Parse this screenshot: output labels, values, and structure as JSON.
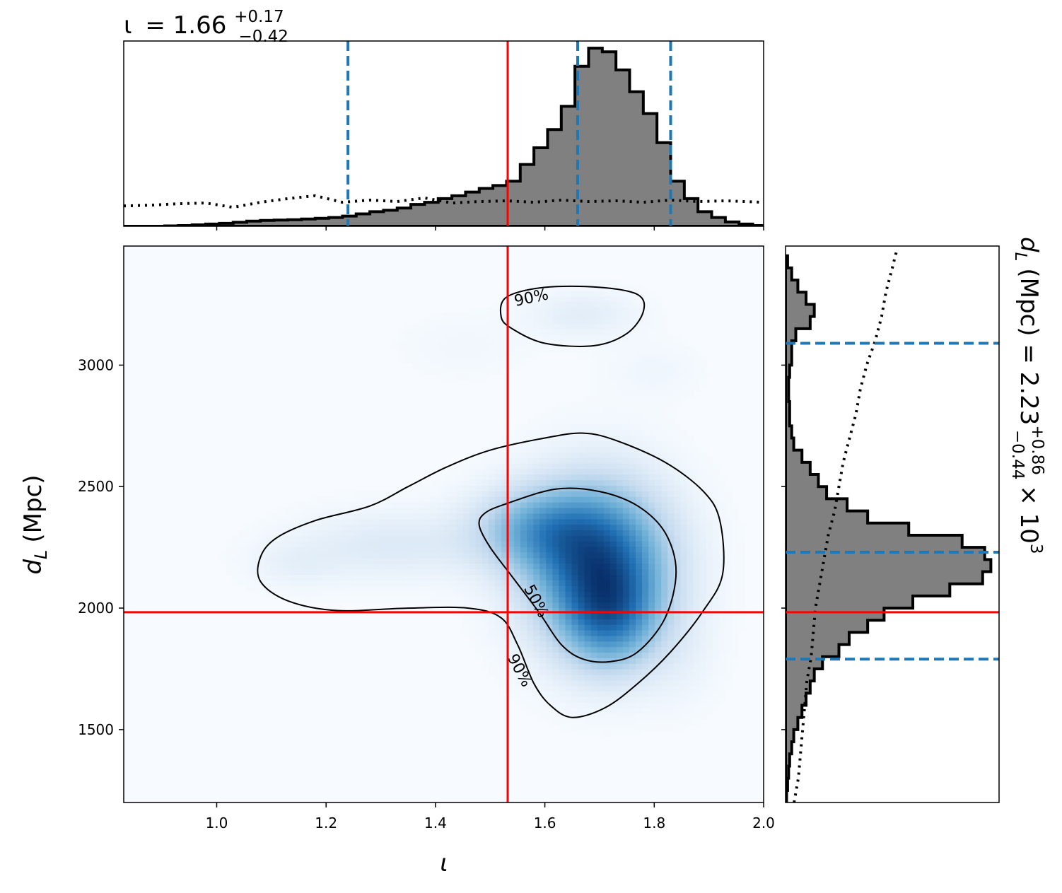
{
  "chart_data": {
    "type": "corner",
    "colors": {
      "hist_fill": "#808080",
      "hist_edge": "#000000",
      "quantile": "#1f77b4",
      "truth": "#ff0000",
      "contour": "#000000",
      "density_low": "#f7fbff",
      "density_high": "#08306b"
    },
    "top_panel": {
      "title": {
        "param": "ι",
        "eq": "= 1.66",
        "sup": "+0.17",
        "sub": "−0.42"
      },
      "xlim": [
        0.83,
        2.0
      ],
      "hist": {
        "edges": [
          0.83,
          0.855,
          0.88,
          0.905,
          0.93,
          0.955,
          0.98,
          1.005,
          1.03,
          1.055,
          1.08,
          1.105,
          1.13,
          1.155,
          1.18,
          1.205,
          1.23,
          1.255,
          1.28,
          1.305,
          1.33,
          1.355,
          1.38,
          1.405,
          1.43,
          1.455,
          1.48,
          1.505,
          1.53,
          1.555,
          1.58,
          1.605,
          1.63,
          1.655,
          1.68,
          1.705,
          1.73,
          1.755,
          1.78,
          1.805,
          1.83,
          1.855,
          1.88,
          1.905,
          1.93,
          1.955,
          1.98,
          2.0
        ],
        "values": [
          0.0,
          0.0,
          0.0,
          0.005,
          0.01,
          0.02,
          0.03,
          0.04,
          0.055,
          0.07,
          0.08,
          0.085,
          0.09,
          0.1,
          0.11,
          0.12,
          0.14,
          0.17,
          0.2,
          0.22,
          0.25,
          0.3,
          0.33,
          0.38,
          0.42,
          0.47,
          0.52,
          0.56,
          0.62,
          0.85,
          1.08,
          1.33,
          1.65,
          2.2,
          2.45,
          2.4,
          2.15,
          1.85,
          1.55,
          1.15,
          0.62,
          0.38,
          0.2,
          0.12,
          0.06,
          0.03,
          0.01
        ]
      },
      "prior_line": {
        "x": [
          0.83,
          0.88,
          0.93,
          0.98,
          1.03,
          1.08,
          1.13,
          1.18,
          1.23,
          1.28,
          1.33,
          1.38,
          1.43,
          1.48,
          1.53,
          1.58,
          1.63,
          1.68,
          1.73,
          1.78,
          1.83,
          1.88,
          1.93,
          2.0
        ],
        "y": [
          0.28,
          0.29,
          0.31,
          0.32,
          0.26,
          0.33,
          0.38,
          0.42,
          0.33,
          0.36,
          0.34,
          0.39,
          0.32,
          0.34,
          0.35,
          0.33,
          0.36,
          0.34,
          0.35,
          0.33,
          0.36,
          0.34,
          0.35,
          0.33
        ]
      },
      "quantiles": [
        1.24,
        1.66,
        1.83
      ],
      "truth": 1.532
    },
    "main_panel": {
      "xlabel": "ι",
      "ylabel": {
        "var": "d",
        "sub": "L",
        "rest": "(Mpc)"
      },
      "xlim": [
        0.83,
        2.0
      ],
      "ylim": [
        1200,
        3490
      ],
      "xticks": [
        1.0,
        1.2,
        1.4,
        1.6,
        1.8,
        2.0
      ],
      "xtick_labels": [
        "1.0",
        "1.2",
        "1.4",
        "1.6",
        "1.8",
        "2.0"
      ],
      "yticks": [
        1500,
        2000,
        2500,
        3000
      ],
      "ytick_labels": [
        "1500",
        "2000",
        "2500",
        "3000"
      ],
      "truth": {
        "x": 1.532,
        "y": 1983
      },
      "density_blobs": [
        {
          "x": 1.7,
          "y": 2180,
          "sx": 0.09,
          "sy": 230,
          "w": 1.0
        },
        {
          "x": 1.72,
          "y": 1950,
          "sx": 0.06,
          "sy": 150,
          "w": 0.45
        },
        {
          "x": 1.58,
          "y": 2330,
          "sx": 0.08,
          "sy": 120,
          "w": 0.45
        },
        {
          "x": 1.32,
          "y": 2260,
          "sx": 0.12,
          "sy": 100,
          "w": 0.16
        },
        {
          "x": 1.14,
          "y": 2180,
          "sx": 0.06,
          "sy": 70,
          "w": 0.08
        },
        {
          "x": 1.67,
          "y": 3210,
          "sx": 0.07,
          "sy": 70,
          "w": 0.13
        },
        {
          "x": 1.8,
          "y": 2980,
          "sx": 0.06,
          "sy": 80,
          "w": 0.05
        },
        {
          "x": 1.45,
          "y": 3080,
          "sx": 0.08,
          "sy": 90,
          "w": 0.04
        },
        {
          "x": 1.85,
          "y": 1800,
          "sx": 0.05,
          "sy": 150,
          "w": 0.06
        }
      ],
      "contours": [
        {
          "level_label": "90%",
          "points": [
            [
              1.08,
              2210
            ],
            [
              1.11,
              2290
            ],
            [
              1.18,
              2360
            ],
            [
              1.28,
              2420
            ],
            [
              1.35,
              2500
            ],
            [
              1.42,
              2580
            ],
            [
              1.5,
              2650
            ],
            [
              1.6,
              2700
            ],
            [
              1.67,
              2720
            ],
            [
              1.73,
              2690
            ],
            [
              1.82,
              2600
            ],
            [
              1.89,
              2480
            ],
            [
              1.92,
              2360
            ],
            [
              1.925,
              2140
            ],
            [
              1.89,
              1990
            ],
            [
              1.83,
              1820
            ],
            [
              1.77,
              1690
            ],
            [
              1.71,
              1590
            ],
            [
              1.65,
              1550
            ],
            [
              1.61,
              1600
            ],
            [
              1.58,
              1690
            ],
            [
              1.55,
              1850
            ],
            [
              1.52,
              1960
            ],
            [
              1.46,
              2000
            ],
            [
              1.35,
              2000
            ],
            [
              1.22,
              1990
            ],
            [
              1.13,
              2030
            ],
            [
              1.08,
              2110
            ]
          ]
        },
        {
          "level_label": "50%",
          "points": [
            [
              1.49,
              2390
            ],
            [
              1.53,
              2430
            ],
            [
              1.62,
              2490
            ],
            [
              1.7,
              2480
            ],
            [
              1.77,
              2420
            ],
            [
              1.82,
              2310
            ],
            [
              1.84,
              2150
            ],
            [
              1.82,
              1960
            ],
            [
              1.77,
              1820
            ],
            [
              1.72,
              1780
            ],
            [
              1.67,
              1790
            ],
            [
              1.63,
              1850
            ],
            [
              1.59,
              1980
            ],
            [
              1.54,
              2130
            ],
            [
              1.5,
              2250
            ],
            [
              1.48,
              2340
            ]
          ]
        },
        {
          "level_label": "90%",
          "points": [
            [
              1.53,
              3280
            ],
            [
              1.6,
              3320
            ],
            [
              1.7,
              3320
            ],
            [
              1.77,
              3290
            ],
            [
              1.78,
              3220
            ],
            [
              1.75,
              3130
            ],
            [
              1.69,
              3080
            ],
            [
              1.6,
              3090
            ],
            [
              1.54,
              3150
            ],
            [
              1.52,
              3200
            ]
          ]
        }
      ],
      "contour_labels": [
        {
          "text": "90%",
          "x": 1.575,
          "y": 3280,
          "rotation": -12
        },
        {
          "text": "50%",
          "x": 1.585,
          "y": 2030,
          "rotation": 62
        },
        {
          "text": "90%",
          "x": 1.555,
          "y": 1745,
          "rotation": 62
        }
      ]
    },
    "right_panel": {
      "title": {
        "var": "d",
        "sub": "L",
        "eq": "(Mpc) = 2.23",
        "sup": "+0.86",
        "subsc": "−0.44",
        "tail": "× 10",
        "exp": "3"
      },
      "ylim": [
        1200,
        3490
      ],
      "hist": {
        "edges": [
          1200,
          1250,
          1300,
          1350,
          1400,
          1450,
          1500,
          1550,
          1600,
          1650,
          1700,
          1750,
          1800,
          1850,
          1900,
          1950,
          2000,
          2050,
          2100,
          2150,
          2200,
          2250,
          2300,
          2350,
          2400,
          2450,
          2500,
          2550,
          2600,
          2650,
          2700,
          2750,
          2800,
          2850,
          2900,
          2950,
          3000,
          3050,
          3100,
          3150,
          3200,
          3250,
          3300,
          3350,
          3400,
          3450
        ],
        "values": [
          0.005,
          0.01,
          0.015,
          0.02,
          0.03,
          0.04,
          0.06,
          0.08,
          0.1,
          0.12,
          0.14,
          0.18,
          0.26,
          0.31,
          0.4,
          0.48,
          0.62,
          0.8,
          0.96,
          1.0,
          0.97,
          0.86,
          0.6,
          0.4,
          0.3,
          0.2,
          0.16,
          0.12,
          0.08,
          0.04,
          0.03,
          0.02,
          0.02,
          0.015,
          0.015,
          0.02,
          0.03,
          0.03,
          0.05,
          0.12,
          0.14,
          0.1,
          0.06,
          0.03,
          0.01
        ]
      },
      "prior_line": {
        "y": [
          1200,
          1300,
          1400,
          1500,
          1600,
          1700,
          1800,
          1900,
          2000,
          2100,
          2200,
          2300,
          2400,
          2500,
          2600,
          2700,
          2800,
          2900,
          3000,
          3100,
          3200,
          3300,
          3400,
          3470
        ],
        "x": [
          0.04,
          0.06,
          0.07,
          0.08,
          0.09,
          0.1,
          0.12,
          0.13,
          0.14,
          0.16,
          0.18,
          0.2,
          0.23,
          0.25,
          0.27,
          0.3,
          0.33,
          0.35,
          0.38,
          0.42,
          0.45,
          0.47,
          0.5,
          0.52
        ]
      },
      "quantiles": [
        1790,
        2230,
        3090
      ],
      "truth": 1983
    }
  }
}
